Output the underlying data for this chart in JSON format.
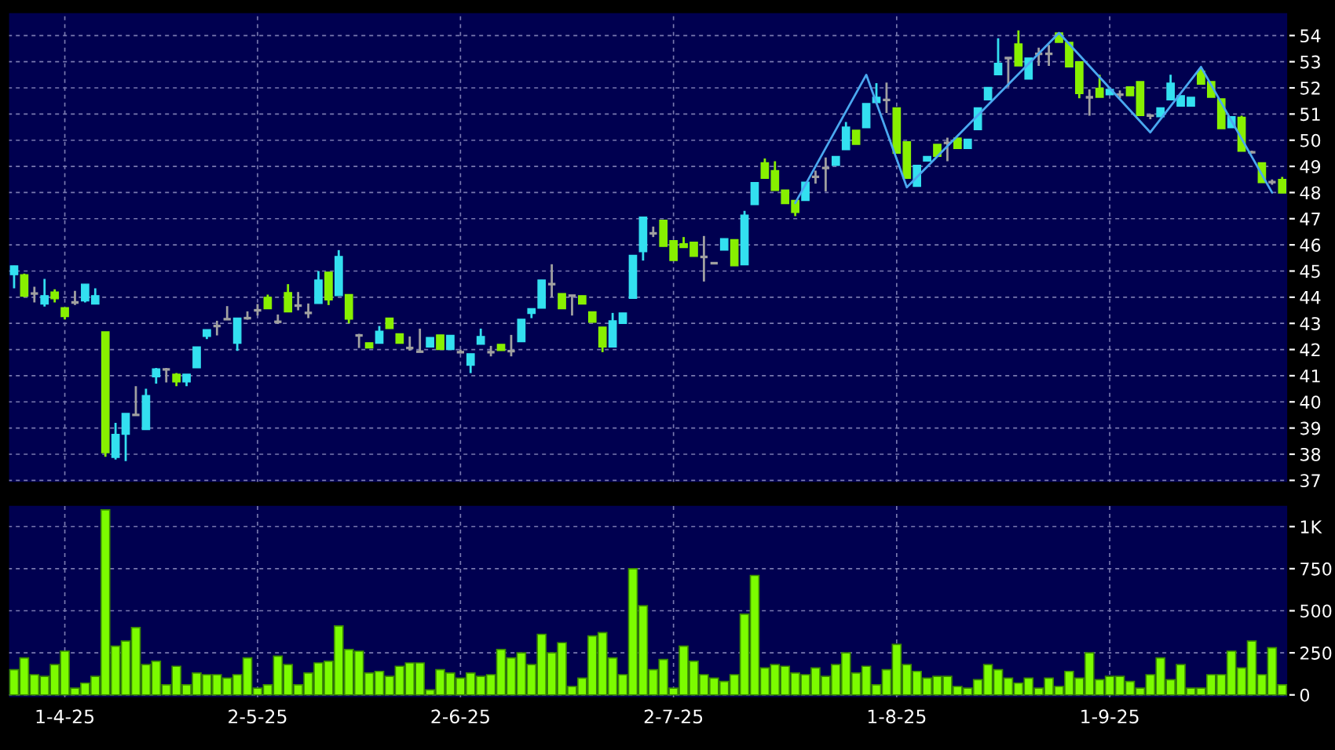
{
  "chart_data": [
    {
      "type": "candlestick",
      "categories": [
        null,
        null,
        null,
        null,
        null,
        null,
        null,
        null,
        null,
        null,
        null,
        null,
        null,
        null,
        null,
        null,
        null,
        null,
        null,
        null,
        null,
        null,
        null,
        null,
        null,
        null,
        null,
        null,
        null,
        null,
        null,
        null,
        null,
        null,
        null,
        null,
        null,
        null,
        null,
        null,
        null,
        null,
        null,
        null,
        null,
        null,
        null,
        null,
        null,
        null,
        null,
        null,
        null,
        null,
        null,
        null,
        null,
        null,
        null,
        null,
        null,
        null,
        null,
        null,
        null,
        null,
        null,
        null,
        null,
        null,
        null,
        null,
        null,
        null,
        null,
        null,
        null,
        null,
        null,
        null,
        null,
        null,
        null,
        null,
        null,
        null,
        null,
        null,
        null,
        null,
        null,
        null,
        null,
        null,
        null,
        null,
        null,
        null,
        null,
        null,
        null,
        null,
        null,
        null,
        null,
        null,
        null,
        null,
        null,
        null,
        null,
        null,
        null,
        null,
        null,
        null,
        null,
        null,
        null,
        null,
        null,
        null,
        null,
        null,
        null,
        null
      ],
      "ohlc": [
        [
          44.86,
          45.2,
          44.34,
          45.2
        ],
        [
          44.86,
          44.9,
          44.0,
          44.04
        ],
        [
          44.14,
          44.4,
          43.8,
          44.14
        ],
        [
          43.74,
          44.7,
          43.64,
          44.06
        ],
        [
          44.2,
          44.3,
          43.8,
          43.94
        ],
        [
          43.6,
          43.6,
          43.15,
          43.26
        ],
        [
          43.8,
          44.24,
          43.7,
          43.8
        ],
        [
          43.86,
          44.5,
          43.8,
          44.5
        ],
        [
          43.74,
          44.34,
          43.74,
          44.06
        ],
        [
          42.68,
          42.68,
          37.9,
          38.06
        ],
        [
          37.88,
          39.2,
          37.8,
          38.76
        ],
        [
          38.76,
          39.56,
          37.74,
          39.56
        ],
        [
          39.5,
          40.6,
          39.5,
          39.5
        ],
        [
          38.94,
          40.5,
          38.94,
          40.24
        ],
        [
          40.96,
          41.3,
          40.7,
          41.26
        ],
        [
          41.24,
          41.3,
          40.74,
          41.24
        ],
        [
          41.06,
          41.1,
          40.6,
          40.76
        ],
        [
          40.76,
          41.06,
          40.6,
          41.06
        ],
        [
          41.3,
          42.1,
          41.3,
          42.1
        ],
        [
          42.5,
          42.76,
          42.4,
          42.76
        ],
        [
          42.9,
          43.1,
          42.54,
          42.9
        ],
        [
          43.16,
          43.66,
          43.16,
          43.16
        ],
        [
          42.24,
          43.2,
          41.95,
          43.2
        ],
        [
          43.2,
          43.46,
          43.14,
          43.2
        ],
        [
          43.5,
          43.74,
          43.3,
          43.5
        ],
        [
          44.0,
          44.1,
          43.56,
          43.56
        ],
        [
          43.06,
          43.34,
          42.98,
          43.06
        ],
        [
          44.18,
          44.5,
          43.44,
          43.44
        ],
        [
          43.68,
          44.2,
          43.5,
          43.68
        ],
        [
          43.4,
          43.76,
          43.2,
          43.4
        ],
        [
          43.76,
          45.0,
          43.76,
          44.66
        ],
        [
          44.96,
          44.96,
          43.7,
          43.9
        ],
        [
          44.06,
          45.8,
          44.06,
          45.56
        ],
        [
          44.1,
          44.1,
          43.0,
          43.16
        ],
        [
          42.54,
          42.6,
          42.06,
          42.54
        ],
        [
          42.26,
          42.26,
          42.06,
          42.06
        ],
        [
          42.24,
          42.9,
          42.24,
          42.7
        ],
        [
          43.2,
          43.2,
          42.8,
          42.8
        ],
        [
          42.6,
          42.6,
          42.24,
          42.24
        ],
        [
          42.06,
          42.5,
          41.96,
          42.06
        ],
        [
          41.92,
          42.8,
          41.9,
          41.92
        ],
        [
          42.1,
          42.46,
          42.1,
          42.46
        ],
        [
          42.56,
          42.56,
          42.0,
          42.0
        ],
        [
          42.0,
          42.54,
          42.0,
          42.54
        ],
        [
          41.9,
          42.0,
          41.86,
          41.9
        ],
        [
          41.4,
          41.84,
          41.1,
          41.84
        ],
        [
          42.2,
          42.8,
          42.2,
          42.5
        ],
        [
          41.9,
          42.14,
          41.74,
          41.9
        ],
        [
          42.2,
          42.2,
          41.96,
          41.96
        ],
        [
          41.94,
          42.56,
          41.74,
          41.94
        ],
        [
          42.3,
          43.16,
          42.3,
          43.16
        ],
        [
          43.38,
          43.56,
          43.2,
          43.56
        ],
        [
          43.58,
          44.66,
          43.58,
          44.66
        ],
        [
          44.5,
          45.26,
          44.0,
          44.5
        ],
        [
          44.14,
          44.14,
          43.56,
          43.56
        ],
        [
          44.06,
          44.06,
          43.3,
          44.06
        ],
        [
          44.06,
          44.06,
          43.74,
          43.74
        ],
        [
          43.44,
          43.44,
          43.04,
          43.04
        ],
        [
          42.86,
          42.86,
          41.9,
          42.1
        ],
        [
          42.1,
          43.4,
          42.1,
          43.1
        ],
        [
          43.0,
          43.4,
          43.0,
          43.4
        ],
        [
          43.96,
          45.6,
          43.96,
          45.6
        ],
        [
          45.74,
          47.06,
          45.4,
          47.06
        ],
        [
          46.44,
          46.7,
          46.3,
          46.44
        ],
        [
          46.94,
          46.94,
          45.94,
          45.94
        ],
        [
          46.16,
          46.16,
          45.4,
          45.4
        ],
        [
          46.04,
          46.3,
          45.9,
          45.9
        ],
        [
          46.1,
          46.1,
          45.56,
          45.56
        ],
        [
          45.54,
          46.34,
          44.6,
          45.54
        ],
        [
          45.3,
          45.3,
          45.3,
          45.3
        ],
        [
          45.8,
          46.24,
          45.8,
          46.24
        ],
        [
          46.2,
          46.2,
          45.2,
          45.2
        ],
        [
          45.24,
          47.3,
          45.24,
          47.14
        ],
        [
          47.54,
          48.38,
          47.54,
          48.38
        ],
        [
          49.14,
          49.3,
          48.54,
          48.54
        ],
        [
          48.84,
          49.2,
          48.08,
          48.08
        ],
        [
          48.1,
          48.1,
          47.58,
          47.58
        ],
        [
          47.7,
          47.7,
          47.1,
          47.24
        ],
        [
          47.7,
          48.4,
          47.7,
          48.4
        ],
        [
          48.6,
          48.84,
          48.34,
          48.6
        ],
        [
          48.94,
          49.34,
          48.04,
          48.94
        ],
        [
          49.04,
          49.38,
          49.04,
          49.38
        ],
        [
          49.64,
          50.7,
          49.64,
          50.5
        ],
        [
          50.38,
          50.38,
          49.84,
          49.84
        ],
        [
          50.48,
          51.4,
          50.48,
          51.4
        ],
        [
          51.44,
          52.18,
          51.44,
          51.64
        ],
        [
          51.54,
          52.2,
          51.04,
          51.54
        ],
        [
          51.24,
          51.24,
          49.5,
          49.5
        ],
        [
          49.94,
          49.94,
          48.54,
          48.54
        ],
        [
          48.24,
          49.04,
          48.24,
          49.04
        ],
        [
          49.2,
          49.38,
          49.2,
          49.38
        ],
        [
          49.84,
          49.84,
          49.38,
          49.38
        ],
        [
          49.9,
          50.1,
          49.2,
          49.9
        ],
        [
          50.08,
          50.08,
          49.68,
          49.68
        ],
        [
          49.68,
          50.04,
          49.68,
          50.04
        ],
        [
          50.4,
          51.24,
          50.4,
          51.24
        ],
        [
          51.54,
          52.02,
          51.54,
          52.02
        ],
        [
          52.5,
          53.9,
          52.5,
          52.94
        ],
        [
          53.14,
          53.14,
          52.04,
          53.14
        ],
        [
          53.68,
          54.2,
          52.84,
          52.84
        ],
        [
          52.34,
          53.14,
          52.34,
          53.14
        ],
        [
          53.3,
          53.54,
          52.84,
          53.3
        ],
        [
          53.3,
          53.64,
          52.84,
          53.3
        ],
        [
          54.1,
          54.1,
          53.74,
          53.74
        ],
        [
          53.74,
          53.74,
          52.8,
          52.8
        ],
        [
          53.0,
          53.0,
          51.6,
          51.78
        ],
        [
          51.64,
          51.94,
          50.94,
          51.64
        ],
        [
          51.99,
          52.5,
          51.64,
          51.64
        ],
        [
          51.74,
          51.94,
          51.74,
          51.94
        ],
        [
          51.74,
          51.9,
          51.6,
          51.74
        ],
        [
          52.04,
          52.04,
          51.7,
          51.7
        ],
        [
          52.24,
          52.24,
          50.94,
          50.94
        ],
        [
          50.94,
          51.0,
          50.8,
          50.94
        ],
        [
          50.9,
          51.24,
          50.9,
          51.24
        ],
        [
          51.54,
          52.5,
          51.54,
          52.18
        ],
        [
          51.3,
          51.7,
          51.3,
          51.7
        ],
        [
          51.3,
          51.64,
          51.3,
          51.64
        ],
        [
          52.64,
          52.8,
          52.14,
          52.14
        ],
        [
          52.24,
          52.24,
          51.64,
          51.64
        ],
        [
          51.58,
          51.58,
          50.44,
          50.44
        ],
        [
          50.48,
          50.9,
          50.48,
          50.9
        ],
        [
          50.88,
          50.94,
          49.58,
          49.58
        ],
        [
          49.54,
          49.6,
          49.5,
          49.54
        ],
        [
          49.14,
          49.14,
          48.38,
          48.38
        ],
        [
          48.4,
          48.5,
          48.3,
          48.4
        ],
        [
          48.5,
          48.6,
          47.98,
          47.98
        ]
      ],
      "colors": [
        "#33e0f0",
        "#88f000",
        "#a0a0a0",
        "#33e0f0",
        "#88f000",
        "#88f000",
        "#a0a0a0",
        "#33e0f0",
        "#33e0f0",
        "#88f000",
        "#33e0f0",
        "#33e0f0",
        "#a0a0a0",
        "#33e0f0",
        "#33e0f0",
        "#a0a0a0",
        "#88f000",
        "#33e0f0",
        "#33e0f0",
        "#33e0f0",
        "#a0a0a0",
        "#a0a0a0",
        "#33e0f0",
        "#a0a0a0",
        "#a0a0a0",
        "#88f000",
        "#a0a0a0",
        "#88f000",
        "#a0a0a0",
        "#a0a0a0",
        "#33e0f0",
        "#88f000",
        "#33e0f0",
        "#88f000",
        "#a0a0a0",
        "#88f000",
        "#33e0f0",
        "#88f000",
        "#88f000",
        "#a0a0a0",
        "#a0a0a0",
        "#33e0f0",
        "#88f000",
        "#33e0f0",
        "#a0a0a0",
        "#33e0f0",
        "#33e0f0",
        "#a0a0a0",
        "#88f000",
        "#a0a0a0",
        "#33e0f0",
        "#33e0f0",
        "#33e0f0",
        "#a0a0a0",
        "#88f000",
        "#a0a0a0",
        "#88f000",
        "#88f000",
        "#88f000",
        "#33e0f0",
        "#33e0f0",
        "#33e0f0",
        "#33e0f0",
        "#a0a0a0",
        "#88f000",
        "#88f000",
        "#88f000",
        "#88f000",
        "#a0a0a0",
        "#a0a0a0",
        "#33e0f0",
        "#88f000",
        "#33e0f0",
        "#33e0f0",
        "#88f000",
        "#88f000",
        "#88f000",
        "#88f000",
        "#33e0f0",
        "#a0a0a0",
        "#a0a0a0",
        "#33e0f0",
        "#33e0f0",
        "#88f000",
        "#33e0f0",
        "#33e0f0",
        "#a0a0a0",
        "#88f000",
        "#88f000",
        "#33e0f0",
        "#33e0f0",
        "#88f000",
        "#a0a0a0",
        "#88f000",
        "#33e0f0",
        "#33e0f0",
        "#33e0f0",
        "#33e0f0",
        "#a0a0a0",
        "#88f000",
        "#33e0f0",
        "#a0a0a0",
        "#a0a0a0",
        "#88f000",
        "#88f000",
        "#88f000",
        "#a0a0a0",
        "#88f000",
        "#33e0f0",
        "#a0a0a0",
        "#88f000",
        "#88f000",
        "#a0a0a0",
        "#33e0f0",
        "#33e0f0",
        "#33e0f0",
        "#33e0f0",
        "#88f000",
        "#88f000",
        "#88f000",
        "#33e0f0",
        "#88f000",
        "#a0a0a0",
        "#88f000",
        "#a0a0a0",
        "#88f000"
      ],
      "series": [
        {
          "type": "line",
          "color": "#4aa8f0",
          "values": [
            null,
            null,
            null,
            null,
            null,
            null,
            null,
            null,
            null,
            null,
            null,
            null,
            null,
            null,
            null,
            null,
            null,
            null,
            null,
            null,
            null,
            null,
            null,
            null,
            null,
            null,
            null,
            null,
            null,
            null,
            null,
            null,
            null,
            null,
            null,
            null,
            null,
            null,
            null,
            null,
            null,
            null,
            null,
            null,
            null,
            null,
            null,
            null,
            null,
            null,
            null,
            null,
            null,
            null,
            null,
            null,
            null,
            null,
            null,
            null,
            null,
            null,
            null,
            null,
            null,
            null,
            null,
            null,
            null,
            null,
            null,
            null,
            null,
            null,
            null,
            null,
            null,
            47.6,
            null,
            null,
            null,
            null,
            null,
            null,
            52.5,
            null,
            null,
            null,
            48.2,
            null,
            null,
            null,
            null,
            null,
            null,
            null,
            null,
            null,
            null,
            null,
            null,
            null,
            null,
            54.1,
            null,
            null,
            null,
            null,
            null,
            null,
            null,
            null,
            50.3,
            null,
            null,
            null,
            null,
            52.8,
            null,
            null,
            null,
            null,
            null,
            null,
            48.0,
            null
          ]
        }
      ],
      "ylim": [
        36.9,
        54.9
      ],
      "yticks": [
        37,
        38,
        39,
        40,
        41,
        42,
        43,
        44,
        45,
        46,
        47,
        48,
        49,
        50,
        51,
        52,
        53,
        54
      ],
      "tick_labels": "y",
      "grid": true
    },
    {
      "type": "bar",
      "categories": [
        null,
        null,
        null,
        null,
        null,
        "1-4-25",
        null,
        null,
        null,
        null,
        null,
        null,
        null,
        null,
        null,
        null,
        null,
        null,
        null,
        null,
        null,
        null,
        null,
        null,
        "2-5-25",
        null,
        null,
        null,
        null,
        null,
        null,
        null,
        null,
        null,
        null,
        null,
        null,
        null,
        null,
        null,
        null,
        null,
        null,
        null,
        "2-6-25",
        null,
        null,
        null,
        null,
        null,
        null,
        null,
        null,
        null,
        null,
        null,
        null,
        null,
        null,
        null,
        null,
        null,
        null,
        null,
        null,
        "2-7-25",
        null,
        null,
        null,
        null,
        null,
        null,
        null,
        null,
        null,
        null,
        null,
        null,
        null,
        null,
        null,
        null,
        null,
        null,
        null,
        null,
        null,
        "1-8-25",
        null,
        null,
        null,
        null,
        null,
        null,
        null,
        null,
        null,
        null,
        null,
        null,
        null,
        null,
        null,
        null,
        null,
        null,
        null,
        null,
        "1-9-25",
        null,
        null,
        null,
        null,
        null,
        null,
        null,
        null,
        null,
        null,
        null,
        null,
        null,
        null,
        null,
        null,
        null
      ],
      "values": [
        150,
        220,
        120,
        110,
        180,
        260,
        40,
        70,
        110,
        1100,
        290,
        320,
        400,
        180,
        200,
        60,
        170,
        60,
        130,
        120,
        120,
        100,
        120,
        220,
        40,
        60,
        230,
        180,
        60,
        130,
        190,
        200,
        410,
        270,
        260,
        130,
        140,
        110,
        170,
        190,
        190,
        30,
        150,
        130,
        100,
        130,
        110,
        120,
        270,
        220,
        250,
        180,
        360,
        250,
        310,
        50,
        100,
        350,
        370,
        220,
        120,
        750,
        530,
        150,
        210,
        40,
        290,
        200,
        120,
        100,
        80,
        120,
        480,
        710,
        160,
        180,
        170,
        130,
        120,
        160,
        110,
        180,
        250,
        130,
        170,
        60,
        150,
        300,
        180,
        140,
        100,
        110,
        110,
        50,
        40,
        90,
        180,
        150,
        100,
        70,
        100,
        40,
        100,
        50,
        140,
        100,
        250,
        90,
        110,
        110,
        80,
        40,
        120,
        220,
        90,
        180,
        40,
        40,
        120,
        120,
        260,
        160,
        320,
        120,
        280,
        60
      ],
      "color": "#7cfc00",
      "ylim": [
        -20,
        1130
      ],
      "yticks": [
        0,
        250,
        500,
        750,
        {
          "value": 1000,
          "label": "1K"
        }
      ],
      "grid": true
    }
  ]
}
